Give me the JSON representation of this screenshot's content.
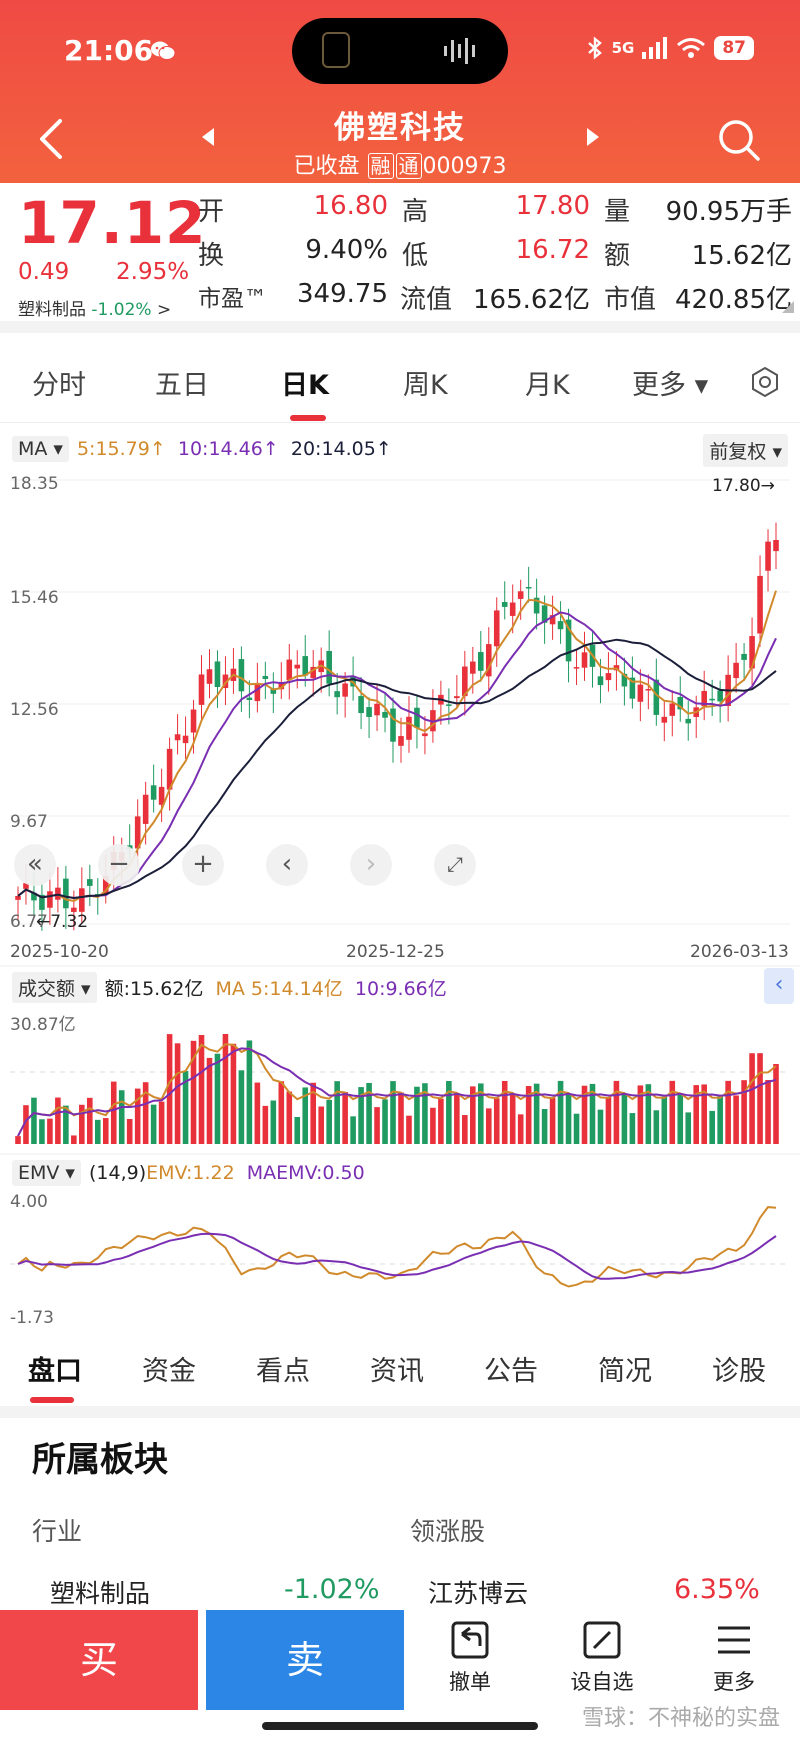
{
  "status": {
    "time": "21:06",
    "network": "5G",
    "battery": "87"
  },
  "header": {
    "title": "佛塑科技",
    "status_text": "已收盘",
    "tag_rong": "融",
    "tag_tong": "通",
    "code": "000973"
  },
  "quote": {
    "price": "17.12",
    "change": "0.49",
    "change_pct": "2.95%",
    "sector_name": "塑料制品",
    "sector_pct": "-1.02%",
    "sector_arrow": ">",
    "labels": {
      "open": "开",
      "high": "高",
      "volume": "量",
      "turnover": "换",
      "low": "低",
      "amount": "额",
      "pe": "市盈™",
      "float_cap": "流值",
      "mkt_cap": "市值"
    },
    "values": {
      "open": "16.80",
      "high": "17.80",
      "volume": "90.95万手",
      "turnover": "9.40%",
      "low": "16.72",
      "amount": "15.62亿",
      "pe": "349.75",
      "float_cap": "165.62亿",
      "mkt_cap": "420.85亿"
    }
  },
  "period_tabs": [
    "分时",
    "五日",
    "日K",
    "周K",
    "月K",
    "更多 ▾"
  ],
  "kline": {
    "ma_selector": "MA ▾",
    "ma5": "5:15.79↑",
    "ma10": "10:14.46↑",
    "ma20": "20:14.05↑",
    "adjust": "前复权 ▾",
    "y_labels": [
      "18.35",
      "15.46",
      "12.56",
      "9.67",
      "6.77"
    ],
    "max_label": "17.80→",
    "min_label": "←7.32",
    "dates": [
      "2025-10-20",
      "2025-12-25",
      "2026-03-13"
    ],
    "controls": [
      "«",
      "−",
      "+",
      "‹",
      "›",
      "⤢"
    ],
    "colors": {
      "up": "#e8313b",
      "down": "#1f9a61",
      "ma5": "#d08a2c",
      "ma10": "#7a2fb3",
      "ma20": "#1b1f3a"
    }
  },
  "volume": {
    "selector": "成交额 ▾",
    "amount": "额:15.62亿",
    "ma5": "MA 5:14.14亿",
    "ma10": "10:9.66亿",
    "y_max": "30.87亿",
    "collapse": "‹"
  },
  "emv": {
    "selector": "EMV ▾",
    "params": "(14,9)",
    "emv": "EMV:1.22",
    "maemv": "MAEMV:0.50",
    "y_top": "4.00",
    "y_bottom": "-1.73"
  },
  "bottom_tabs": [
    "盘口",
    "资金",
    "看点",
    "资讯",
    "公告",
    "简况",
    "诊股"
  ],
  "sectors": {
    "title": "所属板块",
    "industry_head": "行业",
    "leader_head": "领涨股",
    "industry_name": "塑料制品",
    "industry_pct": "-1.02%",
    "leader_name": "江苏博云",
    "leader_pct": "6.35%"
  },
  "footer": {
    "buy": "买",
    "sell": "卖",
    "cancel": "撤单",
    "watch": "设自选",
    "more": "更多"
  },
  "watermark": "雪球：不神秘的实盘"
}
